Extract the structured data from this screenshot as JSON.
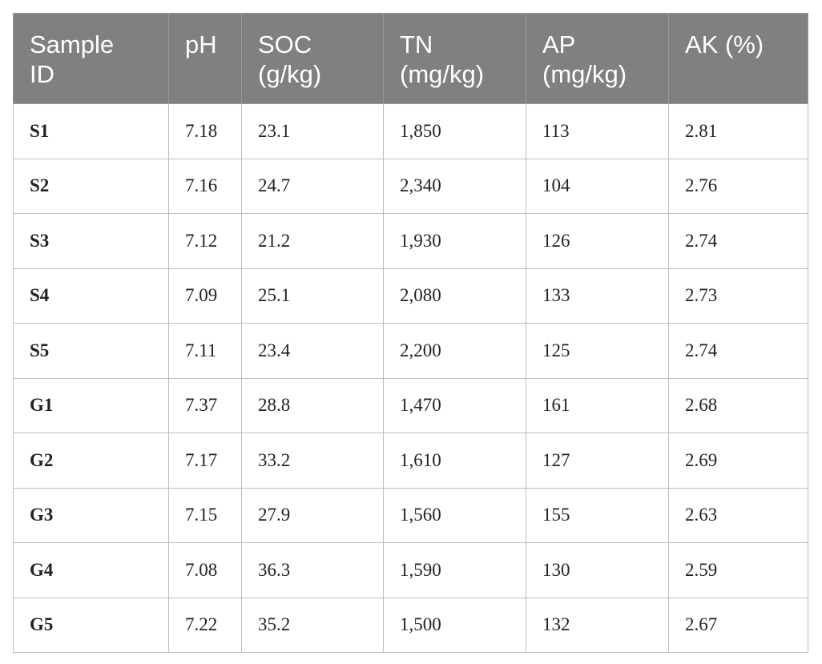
{
  "table": {
    "headers": [
      [
        "Sample",
        "ID"
      ],
      [
        "pH"
      ],
      [
        "SOC",
        "(g/kg)"
      ],
      [
        "TN",
        "(mg/kg)"
      ],
      [
        "AP",
        "(mg/kg)"
      ],
      [
        "AK (%)"
      ]
    ],
    "rows": [
      [
        "S1",
        "7.18",
        "23.1",
        "1,850",
        "113",
        "2.81"
      ],
      [
        "S2",
        "7.16",
        "24.7",
        "2,340",
        "104",
        "2.76"
      ],
      [
        "S3",
        "7.12",
        "21.2",
        "1,930",
        "126",
        "2.74"
      ],
      [
        "S4",
        "7.09",
        "25.1",
        "2,080",
        "133",
        "2.73"
      ],
      [
        "S5",
        "7.11",
        "23.4",
        "2,200",
        "125",
        "2.74"
      ],
      [
        "G1",
        "7.37",
        "28.8",
        "1,470",
        "161",
        "2.68"
      ],
      [
        "G2",
        "7.17",
        "33.2",
        "1,610",
        "127",
        "2.69"
      ],
      [
        "G3",
        "7.15",
        "27.9",
        "1,560",
        "155",
        "2.63"
      ],
      [
        "G4",
        "7.08",
        "36.3",
        "1,590",
        "130",
        "2.59"
      ],
      [
        "G5",
        "7.22",
        "35.2",
        "1,500",
        "132",
        "2.67"
      ]
    ]
  },
  "colors": {
    "header_bg": "#808080",
    "header_text": "#ffffff",
    "border": "#bdbdbd"
  }
}
